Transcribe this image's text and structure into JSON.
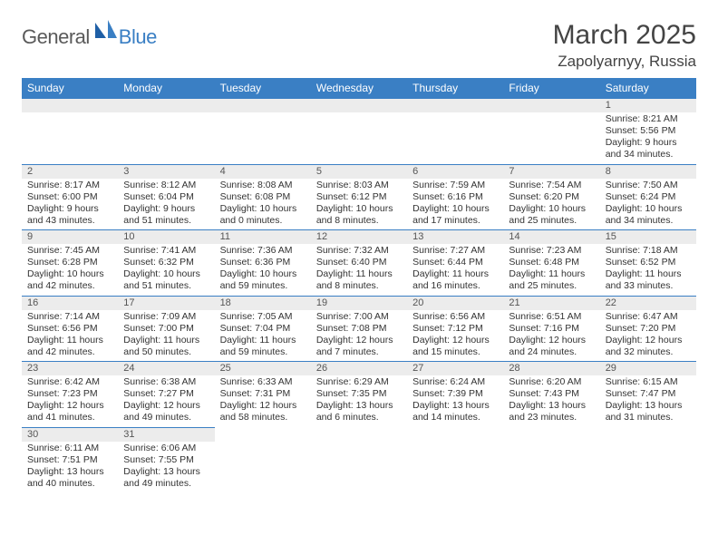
{
  "logo": {
    "general": "General",
    "blue": "Blue"
  },
  "title": "March 2025",
  "location": "Zapolyarnyy, Russia",
  "colors": {
    "header_bg": "#3a7fc4",
    "header_text": "#ffffff",
    "row_border": "#3a7fc4",
    "daynum_bg": "#ececec",
    "body_text": "#333333"
  },
  "weekdays": [
    "Sunday",
    "Monday",
    "Tuesday",
    "Wednesday",
    "Thursday",
    "Friday",
    "Saturday"
  ],
  "weeks": [
    [
      {
        "n": "",
        "sr": "",
        "ss": "",
        "dl1": "",
        "dl2": "",
        "empty": true
      },
      {
        "n": "",
        "sr": "",
        "ss": "",
        "dl1": "",
        "dl2": "",
        "empty": true
      },
      {
        "n": "",
        "sr": "",
        "ss": "",
        "dl1": "",
        "dl2": "",
        "empty": true
      },
      {
        "n": "",
        "sr": "",
        "ss": "",
        "dl1": "",
        "dl2": "",
        "empty": true
      },
      {
        "n": "",
        "sr": "",
        "ss": "",
        "dl1": "",
        "dl2": "",
        "empty": true
      },
      {
        "n": "",
        "sr": "",
        "ss": "",
        "dl1": "",
        "dl2": "",
        "empty": true
      },
      {
        "n": "1",
        "sr": "Sunrise: 8:21 AM",
        "ss": "Sunset: 5:56 PM",
        "dl1": "Daylight: 9 hours",
        "dl2": "and 34 minutes."
      }
    ],
    [
      {
        "n": "2",
        "sr": "Sunrise: 8:17 AM",
        "ss": "Sunset: 6:00 PM",
        "dl1": "Daylight: 9 hours",
        "dl2": "and 43 minutes."
      },
      {
        "n": "3",
        "sr": "Sunrise: 8:12 AM",
        "ss": "Sunset: 6:04 PM",
        "dl1": "Daylight: 9 hours",
        "dl2": "and 51 minutes."
      },
      {
        "n": "4",
        "sr": "Sunrise: 8:08 AM",
        "ss": "Sunset: 6:08 PM",
        "dl1": "Daylight: 10 hours",
        "dl2": "and 0 minutes."
      },
      {
        "n": "5",
        "sr": "Sunrise: 8:03 AM",
        "ss": "Sunset: 6:12 PM",
        "dl1": "Daylight: 10 hours",
        "dl2": "and 8 minutes."
      },
      {
        "n": "6",
        "sr": "Sunrise: 7:59 AM",
        "ss": "Sunset: 6:16 PM",
        "dl1": "Daylight: 10 hours",
        "dl2": "and 17 minutes."
      },
      {
        "n": "7",
        "sr": "Sunrise: 7:54 AM",
        "ss": "Sunset: 6:20 PM",
        "dl1": "Daylight: 10 hours",
        "dl2": "and 25 minutes."
      },
      {
        "n": "8",
        "sr": "Sunrise: 7:50 AM",
        "ss": "Sunset: 6:24 PM",
        "dl1": "Daylight: 10 hours",
        "dl2": "and 34 minutes."
      }
    ],
    [
      {
        "n": "9",
        "sr": "Sunrise: 7:45 AM",
        "ss": "Sunset: 6:28 PM",
        "dl1": "Daylight: 10 hours",
        "dl2": "and 42 minutes."
      },
      {
        "n": "10",
        "sr": "Sunrise: 7:41 AM",
        "ss": "Sunset: 6:32 PM",
        "dl1": "Daylight: 10 hours",
        "dl2": "and 51 minutes."
      },
      {
        "n": "11",
        "sr": "Sunrise: 7:36 AM",
        "ss": "Sunset: 6:36 PM",
        "dl1": "Daylight: 10 hours",
        "dl2": "and 59 minutes."
      },
      {
        "n": "12",
        "sr": "Sunrise: 7:32 AM",
        "ss": "Sunset: 6:40 PM",
        "dl1": "Daylight: 11 hours",
        "dl2": "and 8 minutes."
      },
      {
        "n": "13",
        "sr": "Sunrise: 7:27 AM",
        "ss": "Sunset: 6:44 PM",
        "dl1": "Daylight: 11 hours",
        "dl2": "and 16 minutes."
      },
      {
        "n": "14",
        "sr": "Sunrise: 7:23 AM",
        "ss": "Sunset: 6:48 PM",
        "dl1": "Daylight: 11 hours",
        "dl2": "and 25 minutes."
      },
      {
        "n": "15",
        "sr": "Sunrise: 7:18 AM",
        "ss": "Sunset: 6:52 PM",
        "dl1": "Daylight: 11 hours",
        "dl2": "and 33 minutes."
      }
    ],
    [
      {
        "n": "16",
        "sr": "Sunrise: 7:14 AM",
        "ss": "Sunset: 6:56 PM",
        "dl1": "Daylight: 11 hours",
        "dl2": "and 42 minutes."
      },
      {
        "n": "17",
        "sr": "Sunrise: 7:09 AM",
        "ss": "Sunset: 7:00 PM",
        "dl1": "Daylight: 11 hours",
        "dl2": "and 50 minutes."
      },
      {
        "n": "18",
        "sr": "Sunrise: 7:05 AM",
        "ss": "Sunset: 7:04 PM",
        "dl1": "Daylight: 11 hours",
        "dl2": "and 59 minutes."
      },
      {
        "n": "19",
        "sr": "Sunrise: 7:00 AM",
        "ss": "Sunset: 7:08 PM",
        "dl1": "Daylight: 12 hours",
        "dl2": "and 7 minutes."
      },
      {
        "n": "20",
        "sr": "Sunrise: 6:56 AM",
        "ss": "Sunset: 7:12 PM",
        "dl1": "Daylight: 12 hours",
        "dl2": "and 15 minutes."
      },
      {
        "n": "21",
        "sr": "Sunrise: 6:51 AM",
        "ss": "Sunset: 7:16 PM",
        "dl1": "Daylight: 12 hours",
        "dl2": "and 24 minutes."
      },
      {
        "n": "22",
        "sr": "Sunrise: 6:47 AM",
        "ss": "Sunset: 7:20 PM",
        "dl1": "Daylight: 12 hours",
        "dl2": "and 32 minutes."
      }
    ],
    [
      {
        "n": "23",
        "sr": "Sunrise: 6:42 AM",
        "ss": "Sunset: 7:23 PM",
        "dl1": "Daylight: 12 hours",
        "dl2": "and 41 minutes."
      },
      {
        "n": "24",
        "sr": "Sunrise: 6:38 AM",
        "ss": "Sunset: 7:27 PM",
        "dl1": "Daylight: 12 hours",
        "dl2": "and 49 minutes."
      },
      {
        "n": "25",
        "sr": "Sunrise: 6:33 AM",
        "ss": "Sunset: 7:31 PM",
        "dl1": "Daylight: 12 hours",
        "dl2": "and 58 minutes."
      },
      {
        "n": "26",
        "sr": "Sunrise: 6:29 AM",
        "ss": "Sunset: 7:35 PM",
        "dl1": "Daylight: 13 hours",
        "dl2": "and 6 minutes."
      },
      {
        "n": "27",
        "sr": "Sunrise: 6:24 AM",
        "ss": "Sunset: 7:39 PM",
        "dl1": "Daylight: 13 hours",
        "dl2": "and 14 minutes."
      },
      {
        "n": "28",
        "sr": "Sunrise: 6:20 AM",
        "ss": "Sunset: 7:43 PM",
        "dl1": "Daylight: 13 hours",
        "dl2": "and 23 minutes."
      },
      {
        "n": "29",
        "sr": "Sunrise: 6:15 AM",
        "ss": "Sunset: 7:47 PM",
        "dl1": "Daylight: 13 hours",
        "dl2": "and 31 minutes."
      }
    ],
    [
      {
        "n": "30",
        "sr": "Sunrise: 6:11 AM",
        "ss": "Sunset: 7:51 PM",
        "dl1": "Daylight: 13 hours",
        "dl2": "and 40 minutes."
      },
      {
        "n": "31",
        "sr": "Sunrise: 6:06 AM",
        "ss": "Sunset: 7:55 PM",
        "dl1": "Daylight: 13 hours",
        "dl2": "and 49 minutes."
      },
      {
        "n": "",
        "sr": "",
        "ss": "",
        "dl1": "",
        "dl2": "",
        "empty": true,
        "noborder": true
      },
      {
        "n": "",
        "sr": "",
        "ss": "",
        "dl1": "",
        "dl2": "",
        "empty": true,
        "noborder": true
      },
      {
        "n": "",
        "sr": "",
        "ss": "",
        "dl1": "",
        "dl2": "",
        "empty": true,
        "noborder": true
      },
      {
        "n": "",
        "sr": "",
        "ss": "",
        "dl1": "",
        "dl2": "",
        "empty": true,
        "noborder": true
      },
      {
        "n": "",
        "sr": "",
        "ss": "",
        "dl1": "",
        "dl2": "",
        "empty": true,
        "noborder": true
      }
    ]
  ]
}
